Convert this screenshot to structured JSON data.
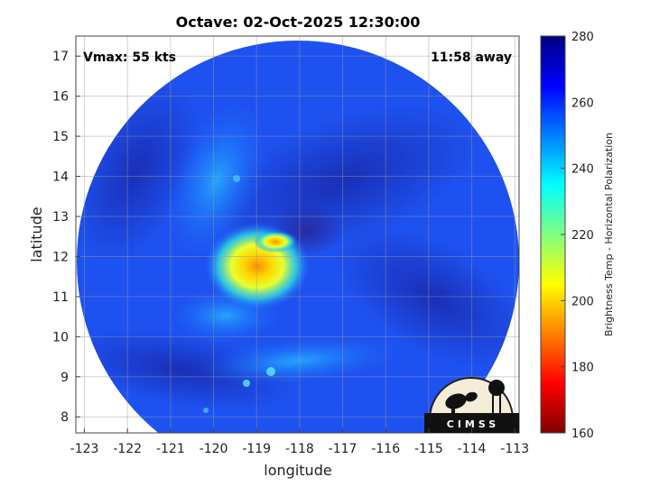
{
  "title": "Octave: 02-Oct-2025 12:30:00",
  "annotations": {
    "vmax": "Vmax: 55 kts",
    "time_away": "11:58 away"
  },
  "logo": {
    "text": "CIMSS"
  },
  "chart_data": {
    "type": "heatmap",
    "title": "Octave: 02-Oct-2025 12:30:00",
    "xlabel": "longitude",
    "ylabel": "latitude",
    "xlim": [
      -123.2,
      -112.9
    ],
    "ylim": [
      7.6,
      17.5
    ],
    "xticks": [
      -123,
      -122,
      -121,
      -120,
      -119,
      -118,
      -117,
      -116,
      -115,
      -114,
      -113
    ],
    "yticks": [
      8,
      9,
      10,
      11,
      12,
      13,
      14,
      15,
      16,
      17
    ],
    "grid": true,
    "colorbar": {
      "label": "Brightness Temp - Horizontal Polarization",
      "range": [
        160,
        280
      ],
      "ticks": [
        160,
        180,
        200,
        220,
        240,
        260,
        280
      ],
      "colormap": "jet"
    },
    "swath": {
      "center_lon": -118.0,
      "center_lat": 12.0,
      "edge": "circular"
    },
    "storm_center": {
      "lon": -119.0,
      "lat": 11.9,
      "min_brightness_temp": 190
    },
    "background_brightness_temp": 262
  }
}
